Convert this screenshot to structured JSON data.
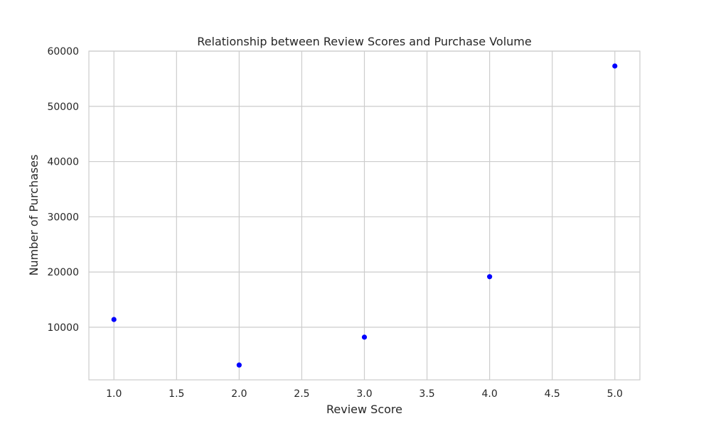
{
  "chart_data": {
    "type": "scatter",
    "title": "Relationship between Review Scores and Purchase Volume",
    "xlabel": "Review Score",
    "ylabel": "Number of Purchases",
    "x": [
      1.0,
      2.0,
      3.0,
      4.0,
      5.0
    ],
    "y": [
      11400,
      3150,
      8200,
      19150,
      57300
    ],
    "xlim": [
      0.8,
      5.2
    ],
    "ylim": [
      470,
      60000
    ],
    "xticks": [
      1.0,
      1.5,
      2.0,
      2.5,
      3.0,
      3.5,
      4.0,
      4.5,
      5.0
    ],
    "xtick_labels": [
      "1.0",
      "1.5",
      "2.0",
      "2.5",
      "3.0",
      "3.5",
      "4.0",
      "4.5",
      "5.0"
    ],
    "yticks": [
      10000,
      20000,
      30000,
      40000,
      50000,
      60000
    ],
    "ytick_labels": [
      "10000",
      "20000",
      "30000",
      "40000",
      "50000",
      "60000"
    ],
    "grid": true,
    "legend": "none",
    "colors": {
      "points": "#0000ff",
      "grid": "#cccccc",
      "frame": "#cccccc",
      "text": "#262626"
    }
  }
}
